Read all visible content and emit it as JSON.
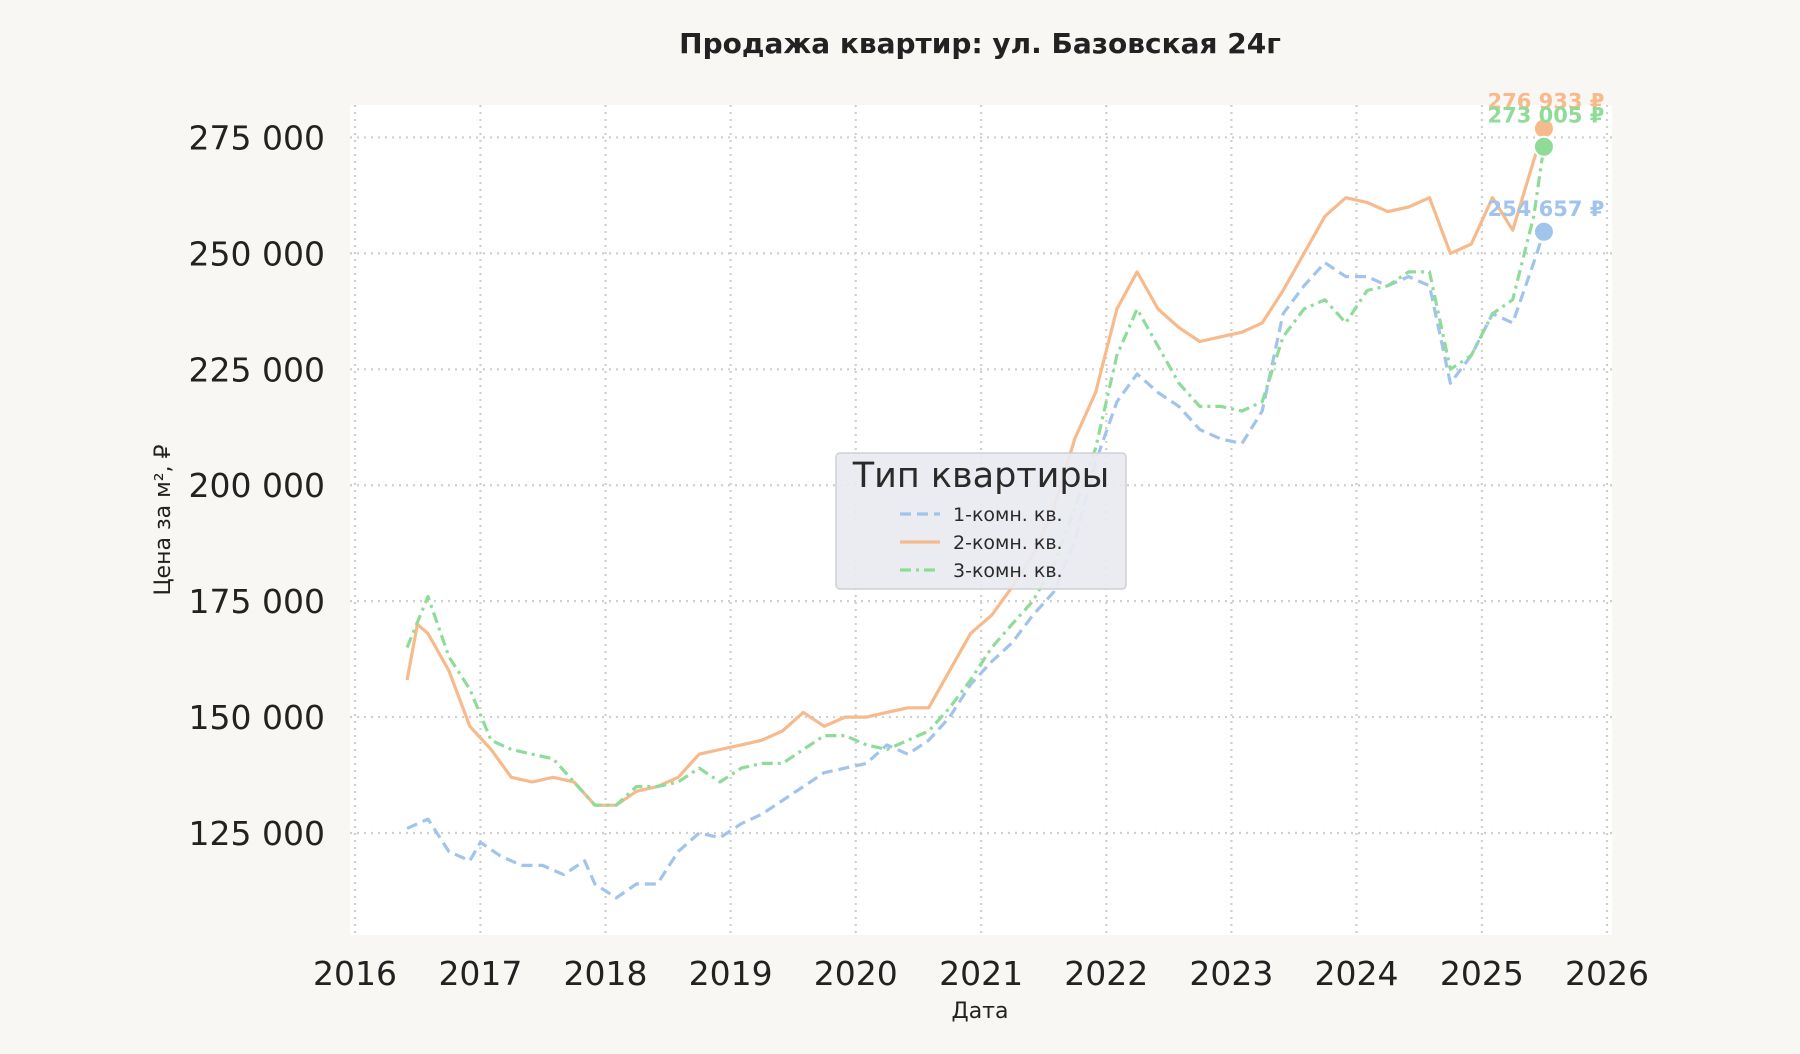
{
  "chart_data": {
    "type": "line",
    "title": "Продажа квартир: ул. Базовская 24г",
    "xlabel": "Дата",
    "ylabel": "Цена за м², ₽",
    "xlim": [
      "2016",
      "2026"
    ],
    "x_ticks": [
      "2016",
      "2017",
      "2018",
      "2019",
      "2020",
      "2021",
      "2022",
      "2023",
      "2024",
      "2025",
      "2026"
    ],
    "ylim": [
      103000,
      282000
    ],
    "y_ticks": [
      125000,
      150000,
      175000,
      200000,
      225000,
      250000,
      275000
    ],
    "y_tick_labels": [
      "125 000",
      "150 000",
      "175 000",
      "200 000",
      "225 000",
      "250 000",
      "275 000"
    ],
    "grid": true,
    "legend": {
      "title": "Тип квартиры",
      "placement": "center"
    },
    "series": [
      {
        "name": "1-комн. кв.",
        "color": "#a1c4ec",
        "dash": "dashed",
        "last_label": "254 657 ₽",
        "points": [
          [
            "2016-06",
            126000
          ],
          [
            "2016-08",
            128000
          ],
          [
            "2016-10",
            121000
          ],
          [
            "2016-12",
            119000
          ],
          [
            "2017-01",
            123000
          ],
          [
            "2017-03",
            120000
          ],
          [
            "2017-05",
            118000
          ],
          [
            "2017-07",
            118000
          ],
          [
            "2017-09",
            116000
          ],
          [
            "2017-11",
            119000
          ],
          [
            "2017-12",
            114000
          ],
          [
            "2018-02",
            111000
          ],
          [
            "2018-04",
            114000
          ],
          [
            "2018-06",
            114000
          ],
          [
            "2018-08",
            121000
          ],
          [
            "2018-10",
            125000
          ],
          [
            "2018-12",
            124000
          ],
          [
            "2019-02",
            127000
          ],
          [
            "2019-04",
            129000
          ],
          [
            "2019-06",
            132000
          ],
          [
            "2019-08",
            135000
          ],
          [
            "2019-10",
            138000
          ],
          [
            "2019-12",
            139000
          ],
          [
            "2020-02",
            140000
          ],
          [
            "2020-04",
            144000
          ],
          [
            "2020-06",
            142000
          ],
          [
            "2020-08",
            145000
          ],
          [
            "2020-10",
            150000
          ],
          [
            "2020-12",
            157000
          ],
          [
            "2021-02",
            162000
          ],
          [
            "2021-04",
            166000
          ],
          [
            "2021-06",
            172000
          ],
          [
            "2021-08",
            177000
          ],
          [
            "2021-10",
            188000
          ],
          [
            "2021-12",
            205000
          ],
          [
            "2022-02",
            218000
          ],
          [
            "2022-04",
            224000
          ],
          [
            "2022-06",
            220000
          ],
          [
            "2022-08",
            217000
          ],
          [
            "2022-10",
            212000
          ],
          [
            "2022-12",
            210000
          ],
          [
            "2023-02",
            209000
          ],
          [
            "2023-04",
            216000
          ],
          [
            "2023-06",
            237000
          ],
          [
            "2023-08",
            243000
          ],
          [
            "2023-10",
            248000
          ],
          [
            "2023-12",
            245000
          ],
          [
            "2024-02",
            245000
          ],
          [
            "2024-04",
            243000
          ],
          [
            "2024-06",
            245000
          ],
          [
            "2024-08",
            243000
          ],
          [
            "2024-10",
            222000
          ],
          [
            "2024-12",
            228000
          ],
          [
            "2025-02",
            237000
          ],
          [
            "2025-04",
            235000
          ],
          [
            "2025-06",
            248000
          ],
          [
            "2025-07",
            254657
          ]
        ]
      },
      {
        "name": "2-комн. кв.",
        "color": "#f6ba8d",
        "dash": "solid",
        "last_label": "276 933 ₽",
        "points": [
          [
            "2016-06",
            158000
          ],
          [
            "2016-07",
            170000
          ],
          [
            "2016-08",
            168000
          ],
          [
            "2016-10",
            160000
          ],
          [
            "2016-12",
            148000
          ],
          [
            "2017-02",
            143000
          ],
          [
            "2017-04",
            137000
          ],
          [
            "2017-06",
            136000
          ],
          [
            "2017-08",
            137000
          ],
          [
            "2017-10",
            136000
          ],
          [
            "2017-12",
            131000
          ],
          [
            "2018-02",
            131000
          ],
          [
            "2018-04",
            134000
          ],
          [
            "2018-06",
            135000
          ],
          [
            "2018-08",
            137000
          ],
          [
            "2018-10",
            142000
          ],
          [
            "2018-12",
            143000
          ],
          [
            "2019-02",
            144000
          ],
          [
            "2019-04",
            145000
          ],
          [
            "2019-06",
            147000
          ],
          [
            "2019-08",
            151000
          ],
          [
            "2019-10",
            148000
          ],
          [
            "2019-12",
            150000
          ],
          [
            "2020-02",
            150000
          ],
          [
            "2020-04",
            151000
          ],
          [
            "2020-06",
            152000
          ],
          [
            "2020-08",
            152000
          ],
          [
            "2020-10",
            160000
          ],
          [
            "2020-12",
            168000
          ],
          [
            "2021-02",
            172000
          ],
          [
            "2021-04",
            178000
          ],
          [
            "2021-06",
            185000
          ],
          [
            "2021-08",
            195000
          ],
          [
            "2021-10",
            210000
          ],
          [
            "2021-12",
            220000
          ],
          [
            "2022-02",
            238000
          ],
          [
            "2022-04",
            246000
          ],
          [
            "2022-06",
            238000
          ],
          [
            "2022-08",
            234000
          ],
          [
            "2022-10",
            231000
          ],
          [
            "2022-12",
            232000
          ],
          [
            "2023-02",
            233000
          ],
          [
            "2023-04",
            235000
          ],
          [
            "2023-06",
            242000
          ],
          [
            "2023-08",
            250000
          ],
          [
            "2023-10",
            258000
          ],
          [
            "2023-12",
            262000
          ],
          [
            "2024-02",
            261000
          ],
          [
            "2024-04",
            259000
          ],
          [
            "2024-06",
            260000
          ],
          [
            "2024-08",
            262000
          ],
          [
            "2024-10",
            250000
          ],
          [
            "2024-12",
            252000
          ],
          [
            "2025-02",
            262000
          ],
          [
            "2025-04",
            255000
          ],
          [
            "2025-06",
            270000
          ],
          [
            "2025-07",
            276933
          ]
        ]
      },
      {
        "name": "3-комн. кв.",
        "color": "#8fdc98",
        "dash": "dashdot",
        "last_label": "273 005 ₽",
        "points": [
          [
            "2016-06",
            165000
          ],
          [
            "2016-08",
            176000
          ],
          [
            "2016-10",
            163000
          ],
          [
            "2016-12",
            156000
          ],
          [
            "2017-02",
            145000
          ],
          [
            "2017-04",
            143000
          ],
          [
            "2017-06",
            142000
          ],
          [
            "2017-08",
            141000
          ],
          [
            "2017-10",
            136000
          ],
          [
            "2017-12",
            131000
          ],
          [
            "2018-02",
            131000
          ],
          [
            "2018-04",
            135000
          ],
          [
            "2018-06",
            135000
          ],
          [
            "2018-08",
            136000
          ],
          [
            "2018-10",
            139000
          ],
          [
            "2018-12",
            136000
          ],
          [
            "2019-02",
            139000
          ],
          [
            "2019-04",
            140000
          ],
          [
            "2019-06",
            140000
          ],
          [
            "2019-08",
            143000
          ],
          [
            "2019-10",
            146000
          ],
          [
            "2019-12",
            146000
          ],
          [
            "2020-02",
            144000
          ],
          [
            "2020-04",
            143000
          ],
          [
            "2020-06",
            145000
          ],
          [
            "2020-08",
            147000
          ],
          [
            "2020-10",
            152000
          ],
          [
            "2020-12",
            158000
          ],
          [
            "2021-02",
            165000
          ],
          [
            "2021-04",
            170000
          ],
          [
            "2021-06",
            175000
          ],
          [
            "2021-08",
            183000
          ],
          [
            "2021-10",
            195000
          ],
          [
            "2021-12",
            208000
          ],
          [
            "2022-02",
            228000
          ],
          [
            "2022-04",
            238000
          ],
          [
            "2022-06",
            230000
          ],
          [
            "2022-08",
            222000
          ],
          [
            "2022-10",
            217000
          ],
          [
            "2022-12",
            217000
          ],
          [
            "2023-02",
            216000
          ],
          [
            "2023-04",
            218000
          ],
          [
            "2023-06",
            232000
          ],
          [
            "2023-08",
            238000
          ],
          [
            "2023-10",
            240000
          ],
          [
            "2023-12",
            235000
          ],
          [
            "2024-02",
            242000
          ],
          [
            "2024-04",
            243000
          ],
          [
            "2024-06",
            246000
          ],
          [
            "2024-08",
            246000
          ],
          [
            "2024-10",
            225000
          ],
          [
            "2024-12",
            228000
          ],
          [
            "2025-02",
            237000
          ],
          [
            "2025-04",
            240000
          ],
          [
            "2025-06",
            258000
          ],
          [
            "2025-07",
            273005
          ]
        ]
      }
    ]
  }
}
